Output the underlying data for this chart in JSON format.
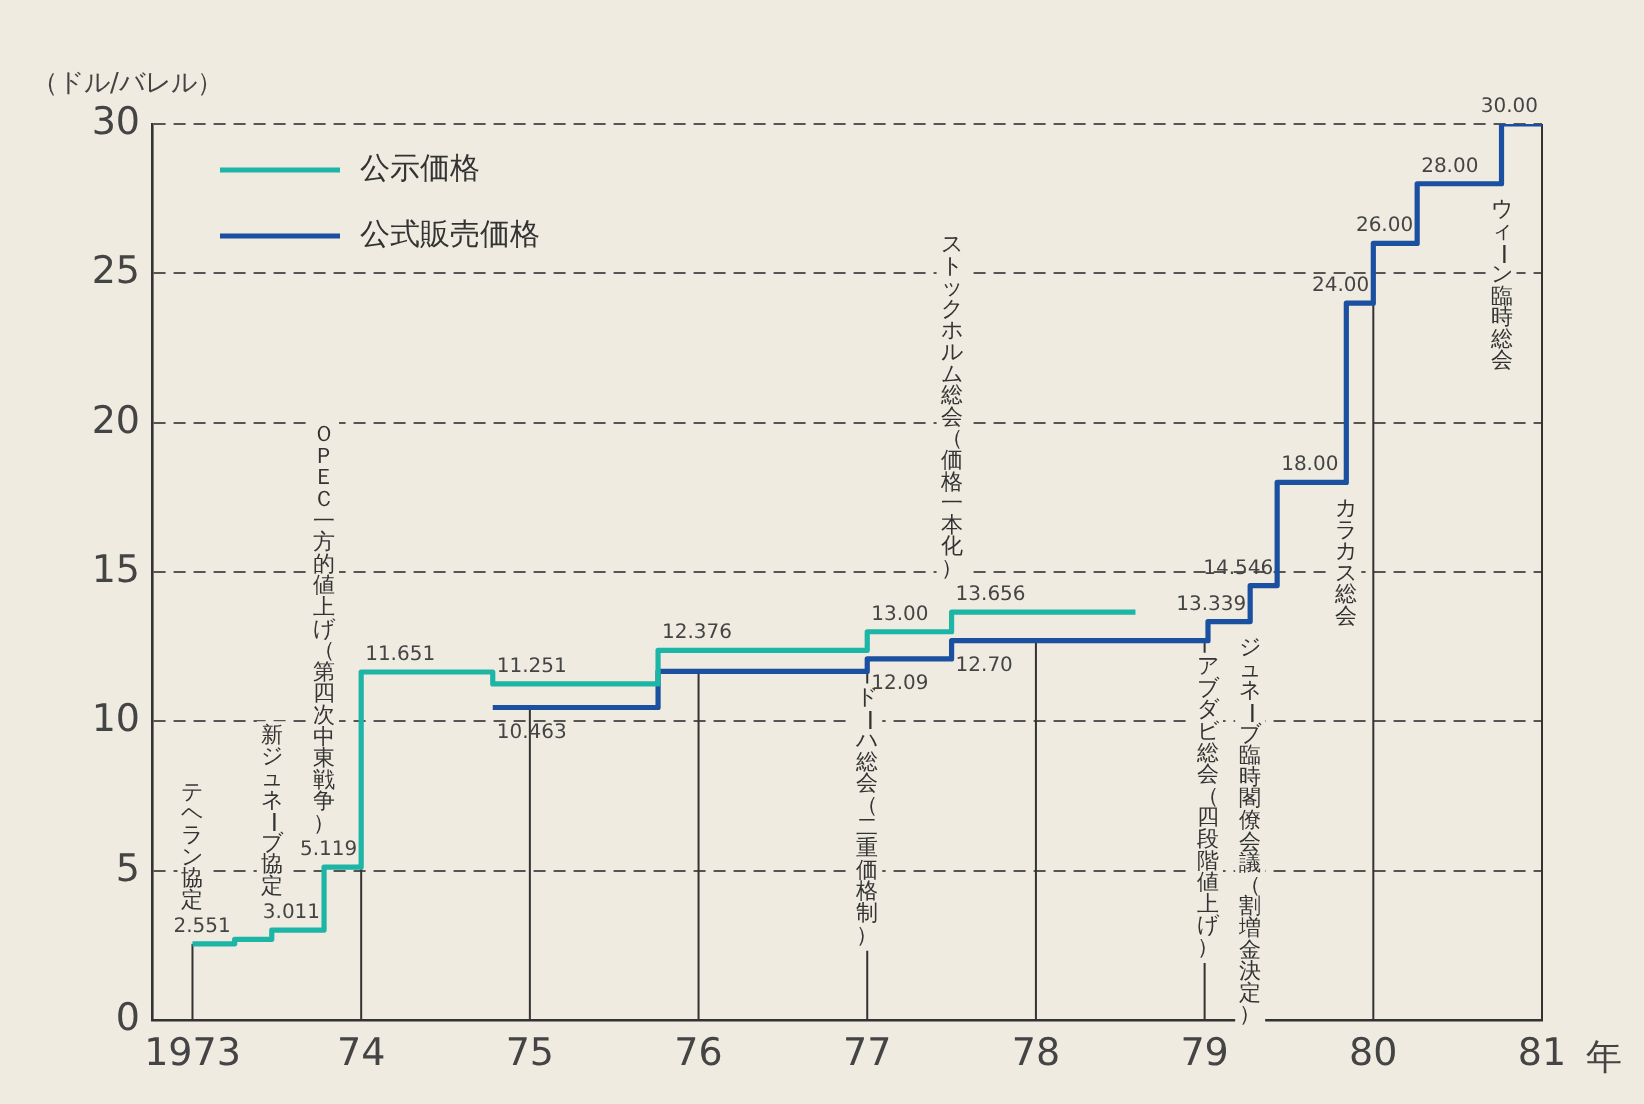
{
  "chart_data": {
    "type": "step",
    "ylabel": "（ドル/バレル）",
    "xlabel": "年",
    "xlim": [
      1972.76,
      1981
    ],
    "xticks": [
      1973,
      {
        "value": 1974,
        "label": "74"
      },
      {
        "value": 1975,
        "label": "75"
      },
      {
        "value": 1976,
        "label": "76"
      },
      {
        "value": 1977,
        "label": "77"
      },
      {
        "value": 1978,
        "label": "78"
      },
      {
        "value": 1979,
        "label": "79"
      },
      {
        "value": 1980,
        "label": "80"
      },
      {
        "value": 1981,
        "label": "81"
      }
    ],
    "ylim": [
      0,
      30
    ],
    "yticks": [
      0,
      5,
      10,
      15,
      20,
      25,
      30
    ],
    "grid": "y",
    "legend": "top left",
    "series": [
      {
        "name": "公示価格",
        "color": "#1db5a6",
        "x": [
          1973.0,
          1973.25,
          1973.47,
          1973.78,
          1974.0,
          1974.78,
          1975.76,
          1977.0,
          1977.5,
          1978.59
        ],
        "values": [
          2.551,
          2.7,
          3.011,
          5.119,
          11.651,
          11.251,
          12.376,
          13.0,
          13.656,
          13.656
        ],
        "value_labels": [
          "2.551",
          null,
          "3.011",
          "5.119",
          "11.651",
          "11.251",
          "12.376",
          "13.00",
          "13.656",
          null
        ]
      },
      {
        "name": "公式販売価格",
        "color": "#1b4f9f",
        "x": [
          1974.78,
          1975.76,
          1977.0,
          1977.5,
          1979.02,
          1979.27,
          1979.43,
          1979.84,
          1980.0,
          1980.26,
          1980.76,
          1981.0
        ],
        "values": [
          10.463,
          11.67,
          12.09,
          12.7,
          13.339,
          14.546,
          18.0,
          24.0,
          26.0,
          28.0,
          30.0,
          30.0
        ],
        "value_labels": [
          "10.463",
          null,
          "12.09",
          "12.70",
          "13.339",
          "14.546",
          "18.00",
          "24.00",
          "26.00",
          "28.00",
          "30.00",
          null
        ]
      }
    ],
    "ref_lines": [
      {
        "axis": "x",
        "value": 1973
      },
      {
        "axis": "x",
        "value": 1974
      },
      {
        "axis": "x",
        "value": 1975
      },
      {
        "axis": "x",
        "value": 1976
      },
      {
        "axis": "x",
        "value": 1977
      },
      {
        "axis": "x",
        "value": 1978
      },
      {
        "axis": "x",
        "value": 1979
      },
      {
        "axis": "x",
        "value": 1980
      },
      {
        "axis": "x",
        "value": 1981
      }
    ],
    "annotations": [
      "テヘラン協定",
      "新ジュネーブ協定",
      "ＯＰＥＣ一方的値上げ（第四次中東戦争）",
      "ドーハ総会（二重価格制）",
      "ストックホルム総会（価格一本化）",
      "アブダビ総会（四段階値上げ）",
      "ジュネーブ臨時閣僚会議（割増金決定）",
      "カラカス総会",
      "ウィーン臨時総会"
    ]
  }
}
